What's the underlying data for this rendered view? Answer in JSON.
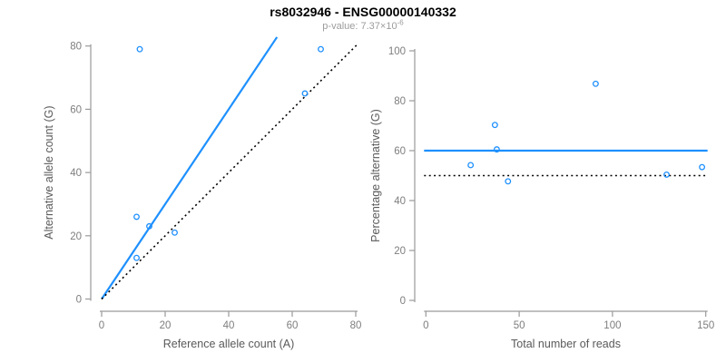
{
  "header": {
    "title": "rs8032946 - ENSG00000140332",
    "pvalue_prefix": "p-value: 7.37×10",
    "pvalue_exponent": "-6"
  },
  "colors": {
    "accent_blue": "#1E90FF",
    "dotted_black": "#000000",
    "axis_line_gray": "#9a9a9a",
    "tick_label_gray": "#7e7e7e",
    "axis_title_gray": "#5a5a5a",
    "title_black": "#000000",
    "subtitle_gray": "#9c9c9c"
  },
  "chart_data": [
    {
      "type": "scatter",
      "name": "allele-counts",
      "xlabel": "Reference allele count (A)",
      "ylabel": "Alternative allele count (G)",
      "xlim": [
        0,
        80
      ],
      "ylim": [
        0,
        80
      ],
      "xticks": [
        0,
        20,
        40,
        60,
        80
      ],
      "yticks": [
        0,
        20,
        40,
        60,
        80
      ],
      "grid": false,
      "legend": "none",
      "points": [
        {
          "x": 12,
          "y": 79
        },
        {
          "x": 11,
          "y": 26
        },
        {
          "x": 15,
          "y": 23
        },
        {
          "x": 11,
          "y": 13
        },
        {
          "x": 23,
          "y": 21
        },
        {
          "x": 64,
          "y": 65
        },
        {
          "x": 69,
          "y": 79
        }
      ],
      "lines": [
        {
          "name": "fitted-ratio-line",
          "style": "solid",
          "color": "blue",
          "slope": 1.5,
          "intercept": 0
        },
        {
          "name": "identity-line",
          "style": "dotted",
          "color": "black",
          "slope": 1,
          "intercept": 0
        }
      ]
    },
    {
      "type": "scatter",
      "name": "percentage-vs-coverage",
      "xlabel": "Total number of reads",
      "ylabel": "Percentage alternative (G)",
      "xlim": [
        0,
        150
      ],
      "ylim": [
        0,
        100
      ],
      "xticks": [
        0,
        50,
        100,
        150
      ],
      "yticks": [
        0,
        20,
        40,
        60,
        80,
        100
      ],
      "grid": false,
      "legend": "none",
      "points": [
        {
          "x": 91,
          "y": 86.8
        },
        {
          "x": 37,
          "y": 70.3
        },
        {
          "x": 38,
          "y": 60.5
        },
        {
          "x": 24,
          "y": 54.2
        },
        {
          "x": 44,
          "y": 47.7
        },
        {
          "x": 129,
          "y": 50.4
        },
        {
          "x": 148,
          "y": 53.4
        }
      ],
      "lines": [
        {
          "name": "fitted-percentage-line",
          "style": "solid",
          "color": "blue",
          "y": 60
        },
        {
          "name": "fifty-percent-line",
          "style": "dotted",
          "color": "black",
          "y": 50
        }
      ]
    }
  ]
}
